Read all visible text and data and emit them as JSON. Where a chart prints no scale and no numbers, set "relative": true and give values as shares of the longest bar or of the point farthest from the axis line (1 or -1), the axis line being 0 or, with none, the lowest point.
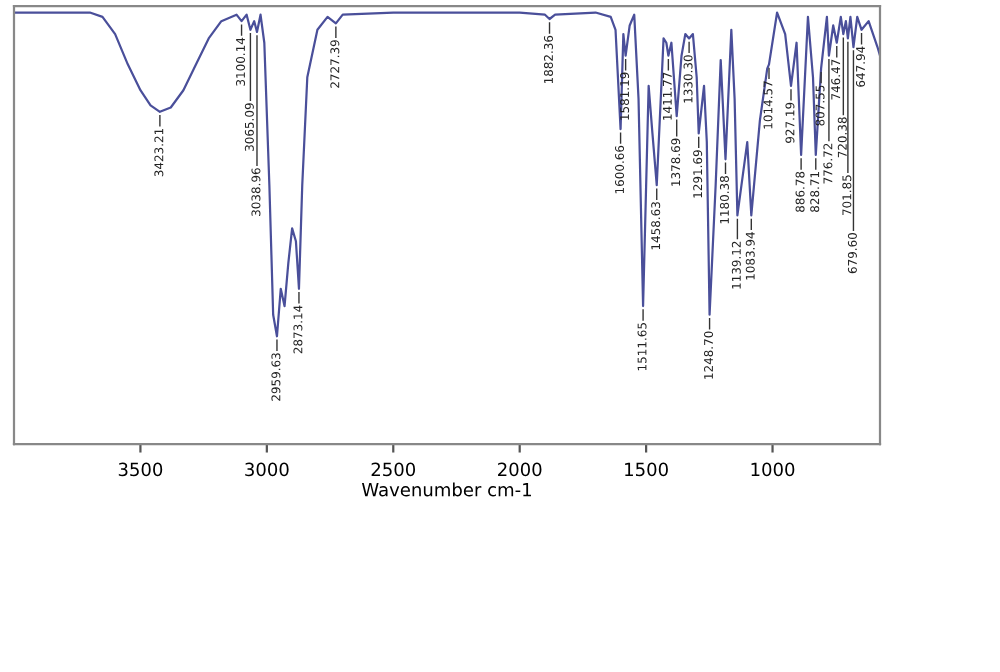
{
  "chart_data": {
    "type": "line",
    "relative": true,
    "xlabel": "Wavenumber cm-1",
    "xlim": [
      4000,
      575
    ],
    "xticks": [
      3500,
      3000,
      2500,
      2000,
      1500,
      1000
    ],
    "grid": false,
    "legend": false,
    "marker": "none",
    "line_style": "solid",
    "series": [
      {
        "color": "#4a4f9a",
        "x": [
          4000,
          3700,
          3650,
          3600,
          3550,
          3500,
          3460,
          3423,
          3380,
          3330,
          3280,
          3230,
          3180,
          3120,
          3100,
          3080,
          3065,
          3050,
          3039,
          3025,
          3010,
          2990,
          2975,
          2960,
          2945,
          2930,
          2915,
          2900,
          2885,
          2873,
          2860,
          2840,
          2800,
          2760,
          2727,
          2700,
          2500,
          2000,
          1900,
          1882,
          1860,
          1700,
          1640,
          1621,
          1601,
          1590,
          1581,
          1565,
          1547,
          1530,
          1512,
          1490,
          1475,
          1458,
          1431,
          1420,
          1412,
          1400,
          1379,
          1360,
          1345,
          1330,
          1315,
          1300,
          1292,
          1271,
          1260,
          1249,
          1225,
          1205,
          1186,
          1163,
          1150,
          1139,
          1100,
          1084,
          1050,
          1021,
          1014,
          982,
          950,
          927,
          905,
          887,
          860,
          840,
          829,
          808,
          785,
          777,
          760,
          746,
          730,
          720,
          710,
          702,
          692,
          680,
          665,
          648,
          620,
          585,
          575
        ],
        "values": [
          1.0,
          1.0,
          0.99,
          0.95,
          0.88,
          0.82,
          0.785,
          0.77,
          0.78,
          0.82,
          0.88,
          0.94,
          0.98,
          0.995,
          0.98,
          0.995,
          0.96,
          0.98,
          0.955,
          0.995,
          0.93,
          0.6,
          0.3,
          0.25,
          0.36,
          0.32,
          0.42,
          0.5,
          0.47,
          0.36,
          0.6,
          0.85,
          0.96,
          0.99,
          0.975,
          0.995,
          1.0,
          1.0,
          0.995,
          0.985,
          0.995,
          1.0,
          0.99,
          0.96,
          0.73,
          0.95,
          0.9,
          0.97,
          0.995,
          0.8,
          0.32,
          0.83,
          0.72,
          0.6,
          0.94,
          0.93,
          0.9,
          0.93,
          0.76,
          0.9,
          0.95,
          0.94,
          0.95,
          0.85,
          0.72,
          0.83,
          0.7,
          0.3,
          0.6,
          0.89,
          0.66,
          0.96,
          0.8,
          0.53,
          0.7,
          0.53,
          0.75,
          0.87,
          0.88,
          1.0,
          0.95,
          0.83,
          0.93,
          0.67,
          0.99,
          0.85,
          0.67,
          0.87,
          0.99,
          0.9,
          0.97,
          0.93,
          0.99,
          0.95,
          0.98,
          0.94,
          0.99,
          0.92,
          0.99,
          0.96,
          0.98,
          0.92,
          0.9
        ]
      }
    ],
    "annotations": [
      {
        "text": "3423.21",
        "x": 3423,
        "y": 0.77
      },
      {
        "text": "3100.14",
        "x": 3100,
        "y": 0.98
      },
      {
        "text": "3065.09",
        "x": 3065,
        "y": 0.96
      },
      {
        "text": "3038.96",
        "x": 3039,
        "y": 0.955
      },
      {
        "text": "2959.63",
        "x": 2960,
        "y": 0.25
      },
      {
        "text": "2873.14",
        "x": 2873,
        "y": 0.36
      },
      {
        "text": "2727.39",
        "x": 2727,
        "y": 0.975
      },
      {
        "text": "1882.36",
        "x": 1882,
        "y": 0.985
      },
      {
        "text": "1600.66",
        "x": 1601,
        "y": 0.73
      },
      {
        "text": "1581.19",
        "x": 1581,
        "y": 0.9
      },
      {
        "text": "1511.65",
        "x": 1512,
        "y": 0.32
      },
      {
        "text": "1458.63",
        "x": 1458,
        "y": 0.6
      },
      {
        "text": "1411.77",
        "x": 1412,
        "y": 0.9
      },
      {
        "text": "1378.69",
        "x": 1379,
        "y": 0.76
      },
      {
        "text": "1330.30",
        "x": 1330,
        "y": 0.94
      },
      {
        "text": "1291.69",
        "x": 1292,
        "y": 0.72
      },
      {
        "text": "1248.70",
        "x": 1249,
        "y": 0.3
      },
      {
        "text": "1180.38",
        "x": 1186,
        "y": 0.66
      },
      {
        "text": "1139.12",
        "x": 1139,
        "y": 0.53
      },
      {
        "text": "1083.94",
        "x": 1084,
        "y": 0.53
      },
      {
        "text": "1014.57",
        "x": 1014,
        "y": 0.88
      },
      {
        "text": "927.19",
        "x": 927,
        "y": 0.83
      },
      {
        "text": "886.78",
        "x": 887,
        "y": 0.67
      },
      {
        "text": "828.71",
        "x": 829,
        "y": 0.67
      },
      {
        "text": "807.55",
        "x": 808,
        "y": 0.87
      },
      {
        "text": "776.72",
        "x": 777,
        "y": 0.9
      },
      {
        "text": "746.47",
        "x": 746,
        "y": 0.93
      },
      {
        "text": "720.38",
        "x": 720,
        "y": 0.95
      },
      {
        "text": "701.85",
        "x": 702,
        "y": 0.94
      },
      {
        "text": "679.60",
        "x": 680,
        "y": 0.92
      },
      {
        "text": "647.94",
        "x": 648,
        "y": 0.96
      }
    ]
  }
}
